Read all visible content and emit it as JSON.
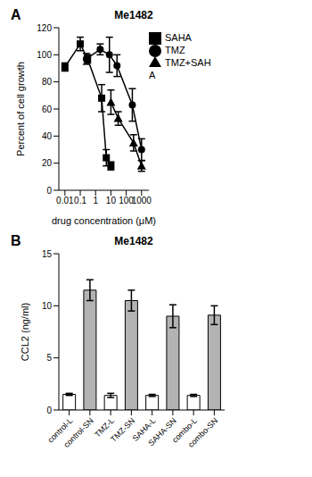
{
  "chart_data": [
    {
      "type": "line",
      "annotation": "A",
      "title": "Me1482",
      "x_label": "drug concentration (μM)",
      "y_label": "Percent of cell growth",
      "log": "x",
      "xlim": [
        0.004,
        3000
      ],
      "xticks": [
        0.01,
        0.1,
        1,
        10,
        100,
        1000
      ],
      "ylim": [
        0,
        120
      ],
      "yticks": [
        0,
        20,
        40,
        60,
        80,
        100,
        120
      ],
      "legend": "right",
      "series": [
        {
          "name": "TMZ",
          "color": "#000000",
          "marker": "circle",
          "x": [
            0.25,
            2,
            8,
            25,
            250,
            1000
          ],
          "values": [
            97,
            104,
            100,
            92,
            63,
            30
          ],
          "errors": [
            4,
            4,
            13,
            8,
            12,
            8
          ]
        },
        {
          "name": "SAHA",
          "color": "#000000",
          "marker": "square",
          "x": [
            0.01,
            0.1,
            0.3,
            2.5,
            5,
            10
          ],
          "values": [
            91,
            108,
            97,
            68,
            24,
            18
          ],
          "errors": [
            3,
            5,
            3,
            10,
            6,
            3
          ]
        },
        {
          "name": "TMZ+SAHA",
          "color": "#000000",
          "marker": "triangle",
          "x": [
            10,
            30,
            300,
            1000
          ],
          "values": [
            65,
            53,
            35,
            18
          ],
          "errors": [
            9,
            5,
            6,
            4
          ]
        }
      ]
    },
    {
      "type": "bar",
      "annotation": "B",
      "title": "Me1482",
      "y_label": "CCL2 (ng/ml)",
      "categories": [
        "control-L",
        "control-SN",
        "TMZ-L",
        "TMZ-SN",
        "SAHA-L",
        "SAHA-SN",
        "combo-L",
        "combo-SN"
      ],
      "values": [
        1.5,
        11.5,
        1.4,
        10.5,
        1.4,
        9.0,
        1.4,
        9.1
      ],
      "errors": [
        0.1,
        1.0,
        0.2,
        1.0,
        0.1,
        1.1,
        0.1,
        0.9
      ],
      "colors": [
        "#ffffff",
        "#b3b3b3",
        "#ffffff",
        "#b3b3b3",
        "#ffffff",
        "#b3b3b3",
        "#ffffff",
        "#b3b3b3"
      ],
      "ylim": [
        0,
        15
      ],
      "yticks": [
        0,
        5,
        10,
        15
      ]
    }
  ]
}
